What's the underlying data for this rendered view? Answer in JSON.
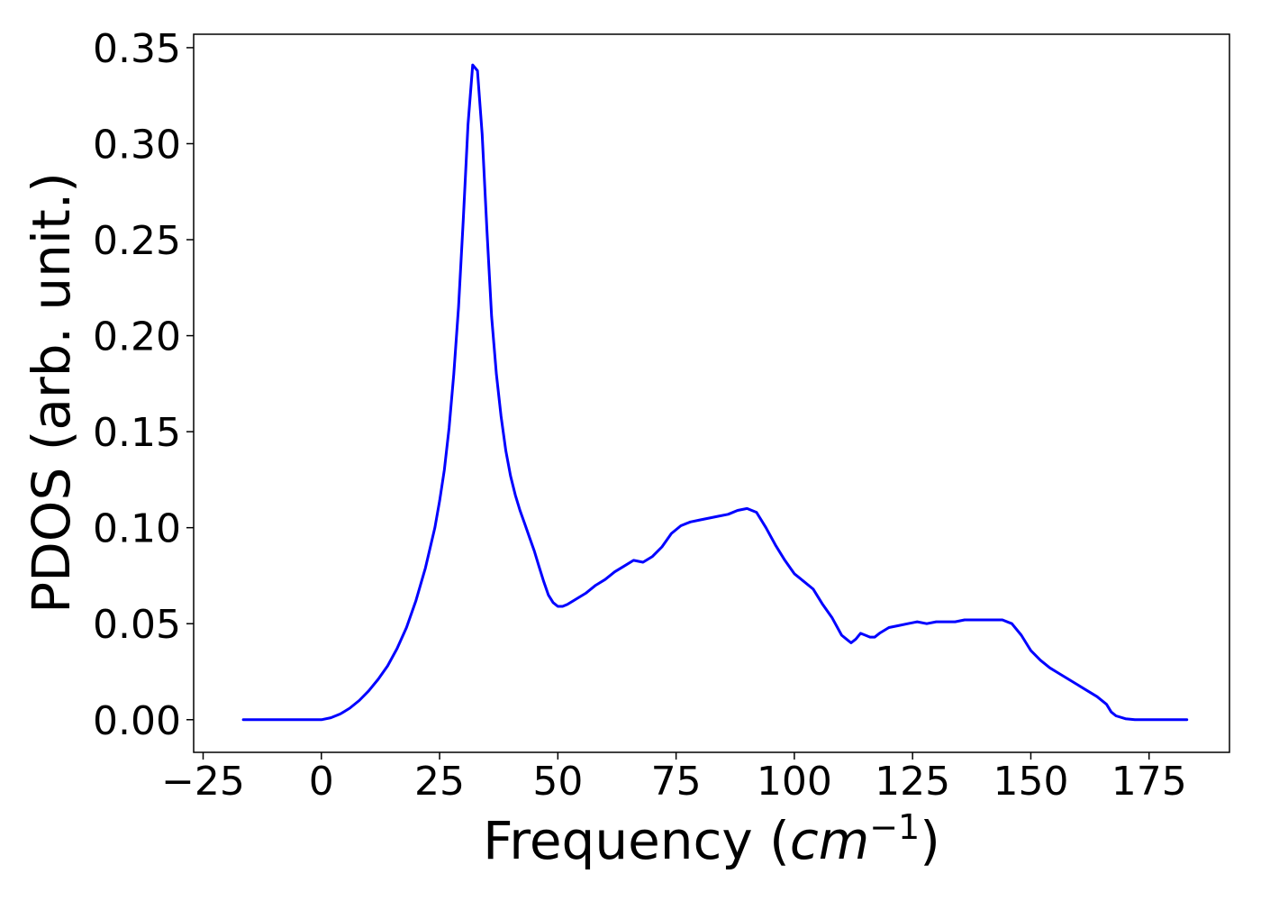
{
  "chart_data": {
    "type": "line",
    "title": "",
    "xlabel": "Frequency",
    "xlabel_unit_base": "cm",
    "xlabel_unit_exp": "−1",
    "ylabel": "PDOS (arb. unit.)",
    "xlim": [
      -27,
      192
    ],
    "ylim": [
      -0.017,
      0.357
    ],
    "xticks": [
      -25,
      0,
      25,
      50,
      75,
      100,
      125,
      150,
      175
    ],
    "xtick_labels": [
      "−25",
      "0",
      "25",
      "50",
      "75",
      "100",
      "125",
      "150",
      "175"
    ],
    "yticks": [
      0.0,
      0.05,
      0.1,
      0.15,
      0.2,
      0.25,
      0.3,
      0.35
    ],
    "ytick_labels": [
      "0.00",
      "0.05",
      "0.10",
      "0.15",
      "0.20",
      "0.25",
      "0.30",
      "0.35"
    ],
    "grid": false,
    "legend": "none",
    "series": [
      {
        "color": "#0000ff",
        "x": [
          -16.5,
          -10,
          -5,
          0,
          2,
          4,
          6,
          8,
          10,
          12,
          14,
          16,
          18,
          20,
          22,
          24,
          25,
          26,
          27,
          28,
          29,
          30,
          31,
          32,
          33,
          34,
          35,
          36,
          37,
          38,
          39,
          40,
          41,
          42,
          43,
          44,
          45,
          46,
          47,
          48,
          49,
          50,
          51,
          52,
          54,
          56,
          58,
          60,
          62,
          64,
          66,
          68,
          70,
          72,
          74,
          76,
          78,
          80,
          82,
          84,
          86,
          88,
          90,
          92,
          94,
          96,
          98,
          100,
          102,
          104,
          106,
          108,
          110,
          111,
          112,
          113,
          114,
          115,
          116,
          117,
          118,
          120,
          122,
          124,
          126,
          128,
          130,
          132,
          134,
          136,
          138,
          140,
          142,
          144,
          146,
          148,
          150,
          152,
          154,
          156,
          158,
          160,
          162,
          164,
          166,
          167,
          168,
          170,
          172,
          175,
          180,
          183
        ],
        "y": [
          0.0,
          0.0,
          0.0,
          0.0,
          0.001,
          0.003,
          0.006,
          0.01,
          0.015,
          0.021,
          0.028,
          0.037,
          0.048,
          0.062,
          0.079,
          0.1,
          0.114,
          0.13,
          0.152,
          0.18,
          0.215,
          0.26,
          0.31,
          0.341,
          0.338,
          0.305,
          0.255,
          0.21,
          0.18,
          0.158,
          0.14,
          0.127,
          0.117,
          0.109,
          0.102,
          0.095,
          0.088,
          0.08,
          0.072,
          0.065,
          0.061,
          0.059,
          0.059,
          0.06,
          0.063,
          0.066,
          0.07,
          0.073,
          0.077,
          0.08,
          0.083,
          0.082,
          0.085,
          0.09,
          0.097,
          0.101,
          0.103,
          0.104,
          0.105,
          0.106,
          0.107,
          0.109,
          0.11,
          0.108,
          0.1,
          0.091,
          0.083,
          0.076,
          0.072,
          0.068,
          0.06,
          0.053,
          0.044,
          0.042,
          0.04,
          0.042,
          0.045,
          0.044,
          0.043,
          0.043,
          0.045,
          0.048,
          0.049,
          0.05,
          0.051,
          0.05,
          0.051,
          0.051,
          0.051,
          0.052,
          0.052,
          0.052,
          0.052,
          0.052,
          0.05,
          0.044,
          0.036,
          0.031,
          0.027,
          0.024,
          0.021,
          0.018,
          0.015,
          0.012,
          0.008,
          0.004,
          0.002,
          0.0005,
          0.0,
          0.0,
          0.0,
          0.0
        ]
      }
    ]
  }
}
